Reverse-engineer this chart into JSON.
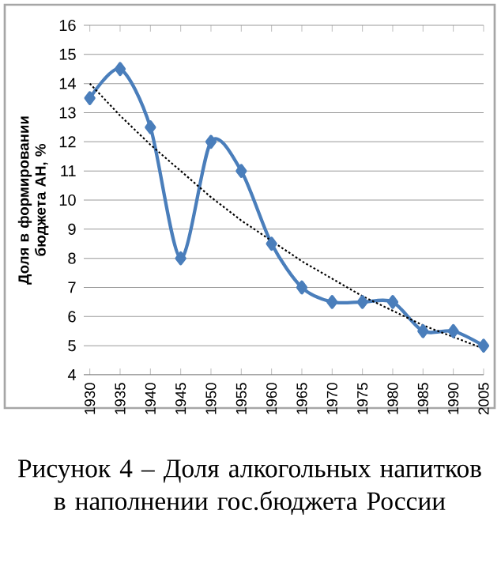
{
  "chart_data": {
    "type": "line",
    "ylabel": "Доля в формировании бюджета АН, %",
    "annotations": [
      "Рисунок 4 – Доля  алкогольных напитков в наполнении гос.бюджета России"
    ],
    "categories": [
      "1930",
      "1935",
      "1940",
      "1945",
      "1950",
      "1955",
      "1960",
      "1965",
      "1970",
      "1975",
      "1980",
      "1985",
      "1990",
      "2005"
    ],
    "series": [
      {
        "color": "#4a7ebb",
        "marker": "diamond",
        "line_style": "solid",
        "values": [
          13.5,
          14.5,
          12.5,
          8,
          12,
          11,
          8.5,
          7,
          6.5,
          6.5,
          6.5,
          5.5,
          5.5,
          5
        ]
      },
      {
        "color": "#000000",
        "marker": "none",
        "line_style": "dotted",
        "values": [
          14.0,
          12.9,
          11.9,
          11.0,
          10.1,
          9.3,
          8.6,
          7.9,
          7.3,
          6.7,
          6.2,
          5.7,
          5.3,
          4.9
        ]
      }
    ],
    "ylim": [
      4,
      16
    ],
    "yticks": [
      4,
      5,
      6,
      7,
      8,
      9,
      10,
      11,
      12,
      13,
      14,
      15,
      16
    ],
    "grid": "y"
  }
}
